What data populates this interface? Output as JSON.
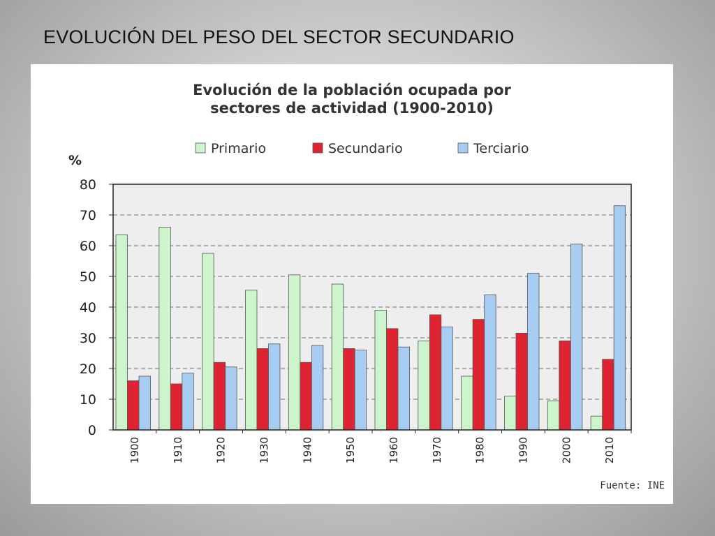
{
  "slide": {
    "title": "EVOLUCIÓN DEL PESO DEL SECTOR SECUNDARIO"
  },
  "chart_data": {
    "type": "bar",
    "title_lines": [
      "Evolución de la población ocupada por",
      "sectores de actividad (1900-2010)"
    ],
    "ylabel": "%",
    "xlabel": "",
    "ylim": [
      0,
      80
    ],
    "yticks": [
      0,
      10,
      20,
      30,
      40,
      50,
      60,
      70,
      80
    ],
    "grid": true,
    "legend_position": "top",
    "source": "Fuente: INE",
    "categories": [
      "1900",
      "1910",
      "1920",
      "1930",
      "1940",
      "1950",
      "1960",
      "1970",
      "1980",
      "1990",
      "2000",
      "2010"
    ],
    "series": [
      {
        "name": "Primario",
        "color": "#ccf5cc",
        "values": [
          63.5,
          66,
          57.5,
          45.5,
          50.5,
          47.5,
          39,
          29,
          17.5,
          11,
          9.5,
          4.5
        ]
      },
      {
        "name": "Secundario",
        "color": "#dd2430",
        "values": [
          16,
          15,
          22,
          26.5,
          22,
          26.5,
          33,
          37.5,
          36,
          31.5,
          29,
          23
        ]
      },
      {
        "name": "Terciario",
        "color": "#a8cdf2",
        "values": [
          17.5,
          18.5,
          20.5,
          28,
          27.5,
          26,
          27,
          33.5,
          44,
          51,
          60.5,
          73
        ]
      }
    ]
  }
}
